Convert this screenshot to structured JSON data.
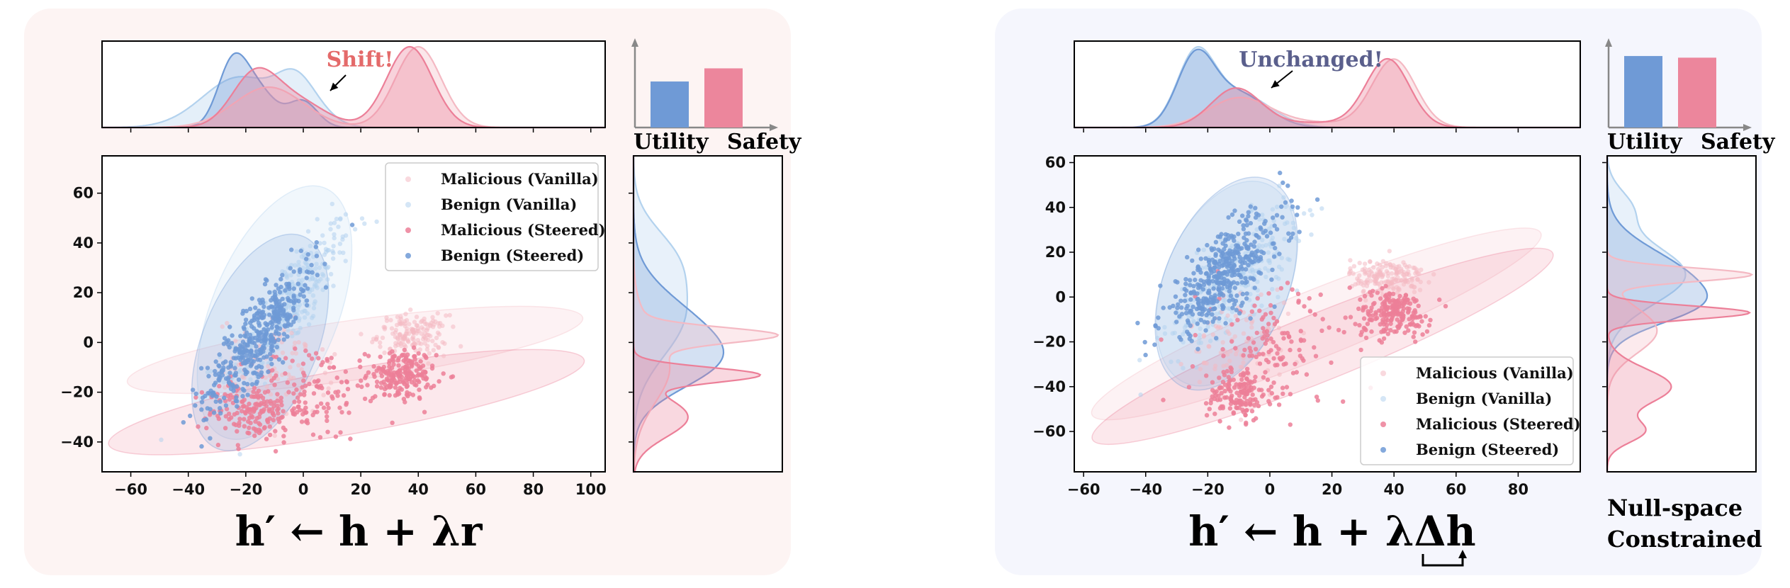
{
  "colors": {
    "left_panel_bg": "#fdf4f3",
    "right_panel_bg": "#f5f6fd",
    "malicious_vanilla": "#f4b9c3",
    "benign_vanilla": "#b3d2ee",
    "malicious_steered": "#ec7f98",
    "benign_steered": "#6f9ad6",
    "bar_utility": "#6f9ad6",
    "bar_safety": "#ec869c",
    "shift_annotation": "#e46a6a",
    "unchanged_annotation": "#5a5f8c"
  },
  "chart_data": [
    {
      "id": "left",
      "type": "scatter",
      "formula": "h′ ← h + λr",
      "annotation": "Shift!",
      "legend_position": "upper-right",
      "xlim": [
        -70,
        105
      ],
      "ylim": [
        -52,
        75
      ],
      "xticks": [
        -60,
        -40,
        -20,
        0,
        20,
        40,
        60,
        80,
        100
      ],
      "yticks": [
        -40,
        -20,
        0,
        20,
        40,
        60
      ],
      "series": [
        {
          "name": "Malicious (Vanilla)",
          "key": "mv",
          "clusters": [
            {
              "cx": 38,
              "cy": 3,
              "sx": 6,
              "sy": 4,
              "n": 160
            },
            {
              "cx": -10,
              "cy": -10,
              "sx": 10,
              "sy": 10,
              "n": 90
            }
          ],
          "ellipse": {
            "cx": 18,
            "cy": -3,
            "rx": 80,
            "ry": 12,
            "angle": 8
          }
        },
        {
          "name": "Benign (Vanilla)",
          "key": "bv",
          "clusters": [
            {
              "cx": -5,
              "cy": 15,
              "sx": 11,
              "sy": 17,
              "rho": 0.85,
              "n": 320
            }
          ],
          "ellipse": {
            "cx": -10,
            "cy": 12,
            "rx": 22,
            "ry": 54,
            "angle": -22
          }
        },
        {
          "name": "Malicious (Steered)",
          "key": "ms",
          "clusters": [
            {
              "cx": 34,
              "cy": -13,
              "sx": 6,
              "sy": 5,
              "n": 200
            },
            {
              "cx": -17,
              "cy": -28,
              "sx": 8,
              "sy": 6,
              "n": 160
            },
            {
              "cx": 2,
              "cy": -20,
              "sx": 10,
              "sy": 10,
              "n": 110
            }
          ],
          "ellipse": {
            "cx": 15,
            "cy": -24,
            "rx": 84,
            "ry": 13,
            "angle": 10
          }
        },
        {
          "name": "Benign (Steered)",
          "key": "bs",
          "clusters": [
            {
              "cx": -15,
              "cy": 3,
              "sx": 10,
              "sy": 15,
              "rho": 0.85,
              "n": 420
            }
          ],
          "ellipse": {
            "cx": -15,
            "cy": 0,
            "rx": 20,
            "ry": 46,
            "angle": -22
          }
        }
      ],
      "top_density": [
        {
          "key": "bv",
          "peaks": [
            [
              -22,
              13,
              0.5
            ],
            [
              -4,
              6,
              0.25
            ],
            [
              2,
              7,
              0.2
            ]
          ]
        },
        {
          "key": "bs",
          "peaks": [
            [
              -25,
              5,
              0.5
            ],
            [
              -17,
              7,
              0.4
            ],
            [
              0,
              5,
              0.25
            ]
          ]
        },
        {
          "key": "mv",
          "peaks": [
            [
              -12,
              12,
              0.4
            ],
            [
              40,
              8,
              0.8
            ]
          ]
        },
        {
          "key": "ms",
          "peaks": [
            [
              -17,
              8,
              0.5
            ],
            [
              -2,
              10,
              0.25
            ],
            [
              37,
              8,
              0.8
            ]
          ]
        }
      ],
      "right_density": [
        {
          "key": "bv",
          "peaks": [
            [
              10,
              16,
              0.4
            ],
            [
              35,
              12,
              0.25
            ]
          ]
        },
        {
          "key": "bs",
          "peaks": [
            [
              3,
              15,
              0.55
            ],
            [
              -10,
              10,
              0.3
            ]
          ]
        },
        {
          "key": "mv",
          "peaks": [
            [
              3,
              3,
              1.0
            ],
            [
              -10,
              14,
              0.3
            ]
          ]
        },
        {
          "key": "ms",
          "peaks": [
            [
              -13,
              3,
              1.0
            ],
            [
              -30,
              8,
              0.45
            ]
          ]
        }
      ],
      "bars": {
        "categories": [
          "Utility",
          "Safety"
        ],
        "values": [
          0.56,
          0.72
        ],
        "ylim": [
          0,
          1
        ]
      }
    },
    {
      "id": "right",
      "type": "scatter",
      "formula": "h′ ← h + λΔh",
      "annotation": "Unchanged!",
      "side_label": [
        "Null-space",
        "Constrained"
      ],
      "legend_position": "lower-right",
      "xlim": [
        -63,
        100
      ],
      "ylim": [
        -78,
        63
      ],
      "xticks": [
        -60,
        -40,
        -20,
        0,
        20,
        40,
        60,
        80
      ],
      "yticks": [
        -60,
        -40,
        -20,
        0,
        20,
        40,
        60
      ],
      "series": [
        {
          "name": "Malicious (Vanilla)",
          "key": "mv",
          "clusters": [
            {
              "cx": 38,
              "cy": 9,
              "sx": 6,
              "sy": 4,
              "n": 170
            },
            {
              "cx": -10,
              "cy": -20,
              "sx": 8,
              "sy": 12,
              "n": 90
            }
          ],
          "ellipse": {
            "cx": 15,
            "cy": -12,
            "rx": 78,
            "ry": 15,
            "angle": 22
          }
        },
        {
          "name": "Benign (Vanilla)",
          "key": "bv",
          "clusters": [
            {
              "cx": -12,
              "cy": 8,
              "sx": 10,
              "sy": 15,
              "rho": 0.75,
              "n": 280
            }
          ],
          "ellipse": {
            "cx": -14,
            "cy": 6,
            "rx": 20,
            "ry": 48,
            "angle": -22
          }
        },
        {
          "name": "Malicious (Steered)",
          "key": "ms",
          "clusters": [
            {
              "cx": 40,
              "cy": -7,
              "sx": 6,
              "sy": 5,
              "n": 200
            },
            {
              "cx": -10,
              "cy": -43,
              "sx": 5,
              "sy": 6,
              "n": 150
            },
            {
              "cx": 2,
              "cy": -22,
              "sx": 12,
              "sy": 14,
              "n": 130
            }
          ],
          "ellipse": {
            "cx": 17,
            "cy": -22,
            "rx": 80,
            "ry": 15,
            "angle": 22
          }
        },
        {
          "name": "Benign (Steered)",
          "key": "bs",
          "clusters": [
            {
              "cx": -15,
              "cy": 10,
              "sx": 10,
              "sy": 14,
              "rho": 0.75,
              "n": 420
            }
          ],
          "ellipse": {
            "cx": -14,
            "cy": 6,
            "rx": 20,
            "ry": 50,
            "angle": -22
          }
        }
      ],
      "top_density": [
        {
          "key": "bv",
          "peaks": [
            [
              -24,
              6,
              0.7
            ],
            [
              -10,
              10,
              0.35
            ]
          ]
        },
        {
          "key": "bs",
          "peaks": [
            [
              -24,
              6,
              0.7
            ],
            [
              -10,
              9,
              0.35
            ]
          ]
        },
        {
          "key": "mv",
          "peaks": [
            [
              -10,
              10,
              0.3
            ],
            [
              40,
              7,
              0.7
            ],
            [
              15,
              15,
              0.05
            ]
          ]
        },
        {
          "key": "ms",
          "peaks": [
            [
              -11,
              8,
              0.4
            ],
            [
              38,
              7,
              0.7
            ],
            [
              15,
              15,
              0.05
            ]
          ]
        }
      ],
      "right_density": [
        {
          "key": "bv",
          "peaks": [
            [
              10,
              13,
              0.55
            ],
            [
              40,
              8,
              0.15
            ]
          ]
        },
        {
          "key": "bs",
          "peaks": [
            [
              8,
              13,
              0.55
            ],
            [
              -5,
              8,
              0.3
            ]
          ]
        },
        {
          "key": "mv",
          "peaks": [
            [
              10,
              3,
              1.0
            ],
            [
              -15,
              10,
              0.35
            ]
          ]
        },
        {
          "key": "ms",
          "peaks": [
            [
              -7,
              3,
              1.0
            ],
            [
              -40,
              8,
              0.45
            ],
            [
              -60,
              5,
              0.25
            ]
          ]
        }
      ],
      "bars": {
        "categories": [
          "Utility",
          "Safety"
        ],
        "values": [
          0.87,
          0.85
        ],
        "ylim": [
          0,
          1
        ]
      }
    }
  ]
}
